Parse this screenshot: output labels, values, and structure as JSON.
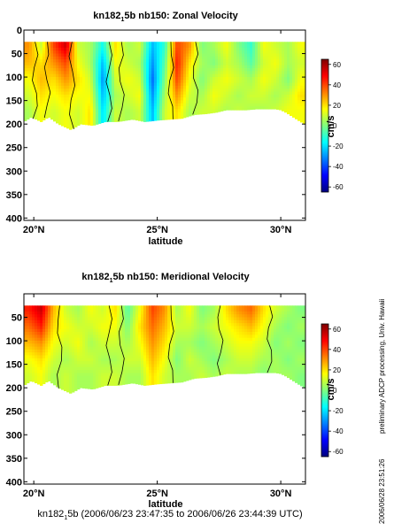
{
  "side_note": "preliminary ADCP processing,  Univ. Hawaii",
  "timestamp": "2006/06/28 23:51:26",
  "footer_prefix": "kn182",
  "footer_sub": "1",
  "footer_suffix": "5b (2006/06/23 23:47:35 to 2006/06/26 23:44:39 UTC)",
  "chart_data": [
    {
      "type": "heatmap",
      "title_prefix": "kn182",
      "title_sub": "1",
      "title_suffix": "5b nb150: Zonal Velocity",
      "xlabel": "latitude",
      "xticks": [
        {
          "value": 20,
          "label": "20°N"
        },
        {
          "value": 25,
          "label": "25°N"
        },
        {
          "value": 30,
          "label": "30°N"
        }
      ],
      "xlim": [
        19.6,
        31.0
      ],
      "ylim": [
        0,
        405
      ],
      "yticks": [
        0,
        50,
        100,
        150,
        200,
        250,
        300,
        350,
        400
      ],
      "colorbar_label": "cm/s",
      "colorbar_ticks": [
        60,
        40,
        20,
        0,
        -20,
        -40,
        -60
      ],
      "clim": [
        -65,
        65
      ],
      "data_top_depth": 25,
      "bottom_depth": [
        [
          19.6,
          195
        ],
        [
          19.9,
          185
        ],
        [
          20.3,
          195
        ],
        [
          20.6,
          185
        ],
        [
          21.0,
          200
        ],
        [
          21.5,
          212
        ],
        [
          21.9,
          200
        ],
        [
          22.4,
          203
        ],
        [
          22.9,
          195
        ],
        [
          23.4,
          195
        ],
        [
          24.0,
          190
        ],
        [
          24.5,
          195
        ],
        [
          25.0,
          192
        ],
        [
          25.5,
          190
        ],
        [
          26.0,
          188
        ],
        [
          26.5,
          180
        ],
        [
          27.0,
          178
        ],
        [
          27.4,
          175
        ],
        [
          27.8,
          170
        ],
        [
          28.2,
          170
        ],
        [
          28.6,
          170
        ],
        [
          29.0,
          168
        ],
        [
          29.4,
          168
        ],
        [
          29.8,
          168
        ],
        [
          30.0,
          170
        ],
        [
          30.2,
          175
        ],
        [
          30.5,
          185
        ],
        [
          30.8,
          195
        ],
        [
          31.0,
          200
        ]
      ],
      "velocity_grid": {
        "latitude": [
          19.8,
          20.3,
          20.8,
          21.3,
          21.8,
          22.3,
          22.8,
          23.3,
          23.8,
          24.3,
          24.8,
          25.3,
          25.8,
          26.3,
          26.8,
          27.3,
          27.8,
          28.3,
          28.8,
          29.3,
          29.8,
          30.3,
          30.8
        ],
        "depth": [
          35,
          70,
          105,
          140,
          175
        ],
        "values": [
          [
            30,
            10,
            40,
            55,
            10,
            5,
            -15,
            20,
            5,
            10,
            -25,
            -10,
            40,
            30,
            0,
            5,
            15,
            0,
            -10,
            15,
            10,
            5,
            15
          ],
          [
            25,
            20,
            30,
            40,
            15,
            5,
            -25,
            15,
            10,
            5,
            -30,
            -5,
            45,
            20,
            5,
            0,
            10,
            5,
            -5,
            10,
            15,
            5,
            10
          ],
          [
            15,
            25,
            20,
            30,
            20,
            10,
            -30,
            10,
            15,
            10,
            -35,
            0,
            40,
            15,
            0,
            10,
            15,
            10,
            5,
            15,
            10,
            0,
            15
          ],
          [
            10,
            20,
            15,
            20,
            15,
            15,
            -25,
            5,
            10,
            15,
            -30,
            5,
            30,
            10,
            5,
            15,
            10,
            5,
            10,
            10,
            5,
            10,
            20
          ],
          [
            5,
            15,
            10,
            15,
            10,
            20,
            -20,
            10,
            5,
            10,
            -25,
            10,
            20,
            5,
            10,
            10,
            5,
            10,
            5,
            5,
            10,
            15,
            15
          ]
        ]
      }
    },
    {
      "type": "heatmap",
      "title_prefix": "kn182",
      "title_sub": "1",
      "title_suffix": "5b nb150: Meridional Velocity",
      "xlabel": "latitude",
      "xticks": [
        {
          "value": 20,
          "label": "20°N"
        },
        {
          "value": 25,
          "label": "25°N"
        },
        {
          "value": 30,
          "label": "30°N"
        }
      ],
      "xlim": [
        19.6,
        31.0
      ],
      "ylim": [
        0,
        405
      ],
      "yticks": [
        50,
        100,
        150,
        200,
        250,
        300,
        350,
        400
      ],
      "colorbar_label": "cm/s",
      "colorbar_ticks": [
        60,
        40,
        20,
        0,
        -20,
        -40,
        -60
      ],
      "clim": [
        -65,
        65
      ],
      "data_top_depth": 25,
      "bottom_depth": [
        [
          19.6,
          195
        ],
        [
          19.9,
          185
        ],
        [
          20.3,
          195
        ],
        [
          20.6,
          185
        ],
        [
          21.0,
          200
        ],
        [
          21.5,
          212
        ],
        [
          21.9,
          200
        ],
        [
          22.4,
          203
        ],
        [
          22.9,
          195
        ],
        [
          23.4,
          195
        ],
        [
          24.0,
          190
        ],
        [
          24.5,
          195
        ],
        [
          25.0,
          192
        ],
        [
          25.5,
          190
        ],
        [
          26.0,
          188
        ],
        [
          26.5,
          180
        ],
        [
          27.0,
          178
        ],
        [
          27.4,
          175
        ],
        [
          27.8,
          170
        ],
        [
          28.2,
          170
        ],
        [
          28.6,
          170
        ],
        [
          29.0,
          168
        ],
        [
          29.4,
          168
        ],
        [
          29.8,
          168
        ],
        [
          30.0,
          170
        ],
        [
          30.2,
          175
        ],
        [
          30.5,
          185
        ],
        [
          30.8,
          195
        ],
        [
          31.0,
          200
        ]
      ],
      "velocity_grid": {
        "latitude": [
          19.8,
          20.3,
          20.8,
          21.3,
          21.8,
          22.3,
          22.8,
          23.3,
          23.8,
          24.3,
          24.8,
          25.3,
          25.8,
          26.3,
          26.8,
          27.3,
          27.8,
          28.3,
          28.8,
          29.3,
          29.8,
          30.3,
          30.8
        ],
        "depth": [
          35,
          70,
          105,
          140,
          175
        ],
        "values": [
          [
            45,
            55,
            25,
            10,
            5,
            15,
            10,
            20,
            -5,
            15,
            40,
            30,
            5,
            15,
            0,
            5,
            20,
            30,
            35,
            20,
            10,
            5,
            0
          ],
          [
            35,
            45,
            20,
            15,
            10,
            10,
            15,
            15,
            0,
            20,
            35,
            25,
            10,
            10,
            5,
            10,
            15,
            20,
            25,
            15,
            5,
            0,
            5
          ],
          [
            25,
            30,
            15,
            10,
            15,
            5,
            10,
            10,
            5,
            15,
            30,
            20,
            5,
            5,
            0,
            5,
            10,
            15,
            15,
            10,
            0,
            5,
            0
          ],
          [
            15,
            20,
            10,
            5,
            10,
            10,
            5,
            5,
            10,
            10,
            25,
            15,
            0,
            10,
            5,
            0,
            5,
            10,
            10,
            5,
            5,
            0,
            5
          ],
          [
            10,
            15,
            5,
            10,
            5,
            5,
            10,
            10,
            5,
            5,
            20,
            10,
            5,
            5,
            10,
            5,
            10,
            5,
            5,
            0,
            5,
            5,
            0
          ]
        ]
      }
    }
  ]
}
